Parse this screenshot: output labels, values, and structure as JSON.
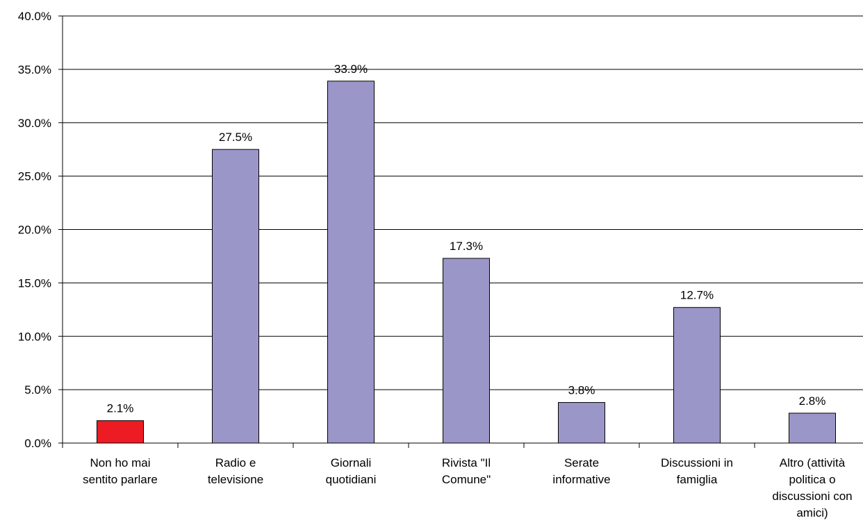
{
  "chart_data": {
    "type": "bar",
    "title": "",
    "xlabel": "",
    "ylabel": "",
    "ylim": [
      0,
      40
    ],
    "yticks": [
      "0.0%",
      "5.0%",
      "10.0%",
      "15.0%",
      "20.0%",
      "25.0%",
      "30.0%",
      "35.0%",
      "40.0%"
    ],
    "grid": true,
    "legend": "none",
    "categories": [
      [
        "Non ho mai",
        "sentito parlare"
      ],
      [
        "Radio e",
        "televisione"
      ],
      [
        "Giornali",
        "quotidiani"
      ],
      [
        "Rivista \"Il",
        "Comune\""
      ],
      [
        "Serate",
        "informative"
      ],
      [
        "Discussioni in",
        "famiglia"
      ],
      [
        "Altro (attività",
        "politica o",
        "discussioni con",
        "amici)"
      ]
    ],
    "values": [
      2.1,
      27.5,
      33.9,
      17.3,
      3.8,
      12.7,
      2.8
    ],
    "value_labels": [
      "2.1%",
      "27.5%",
      "33.9%",
      "17.3%",
      "3.8%",
      "12.7%",
      "2.8%"
    ],
    "colors": [
      "#ed1c24",
      "#9b96c8",
      "#9b96c8",
      "#9b96c8",
      "#9b96c8",
      "#9b96c8",
      "#9b96c8"
    ],
    "bar_edge_color": "#000000"
  }
}
